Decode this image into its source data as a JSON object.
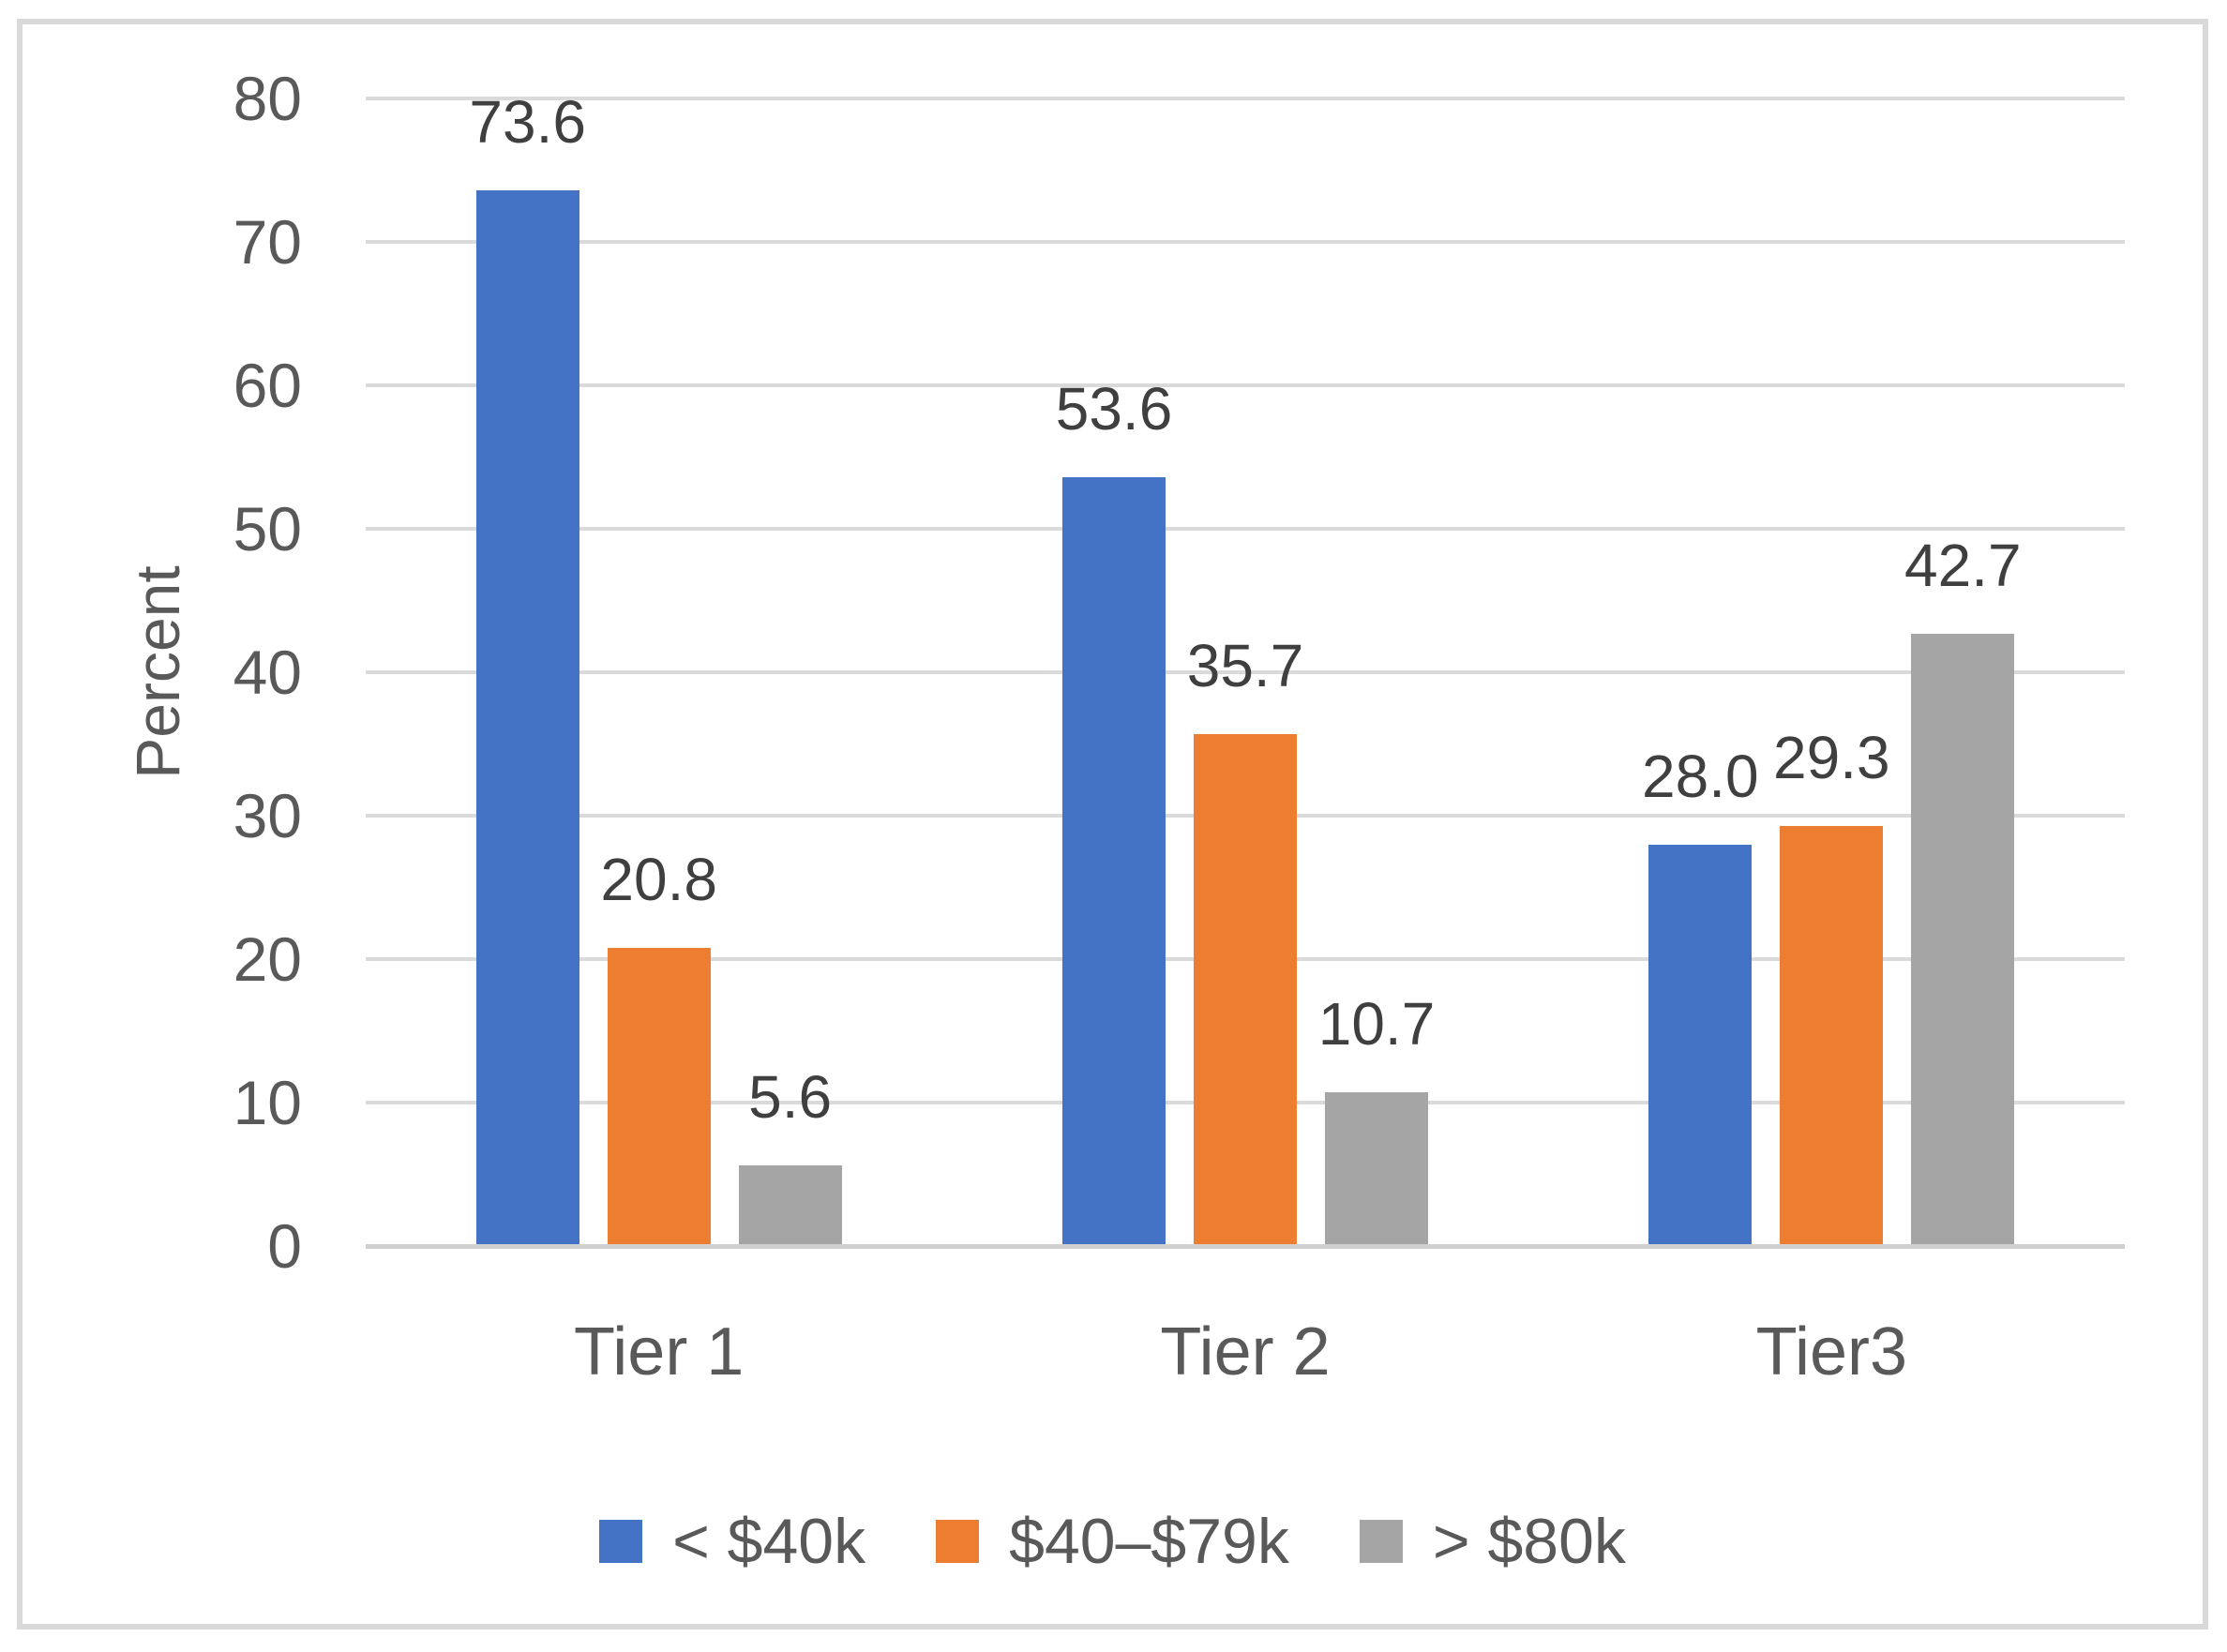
{
  "chart_data": {
    "type": "bar",
    "title": "",
    "xlabel": "",
    "ylabel": "Percent",
    "categories": [
      "Tier 1",
      "Tier 2",
      "Tier3"
    ],
    "series": [
      {
        "name": "< $40k",
        "color": "#4472C4",
        "values": [
          73.6,
          53.6,
          28.0
        ]
      },
      {
        "name": "$40–$79k",
        "color": "#ED7D31",
        "values": [
          20.8,
          35.7,
          29.3
        ]
      },
      {
        "name": "> $80k",
        "color": "#A5A5A5",
        "values": [
          5.6,
          10.7,
          42.7
        ]
      }
    ],
    "ylim": [
      0,
      80
    ],
    "yticks": [
      0,
      10,
      20,
      30,
      40,
      50,
      60,
      70,
      80
    ],
    "grid": true,
    "legend_position": "bottom",
    "data_labels": true,
    "value_label_decimals": 1
  },
  "style": {
    "gridline_color": "#dadada",
    "axis_line_color": "#d0d0d0",
    "tick_text_color": "#595959",
    "data_label_color": "#3f3f3f",
    "frame_border_color": "#d9d9d9"
  }
}
